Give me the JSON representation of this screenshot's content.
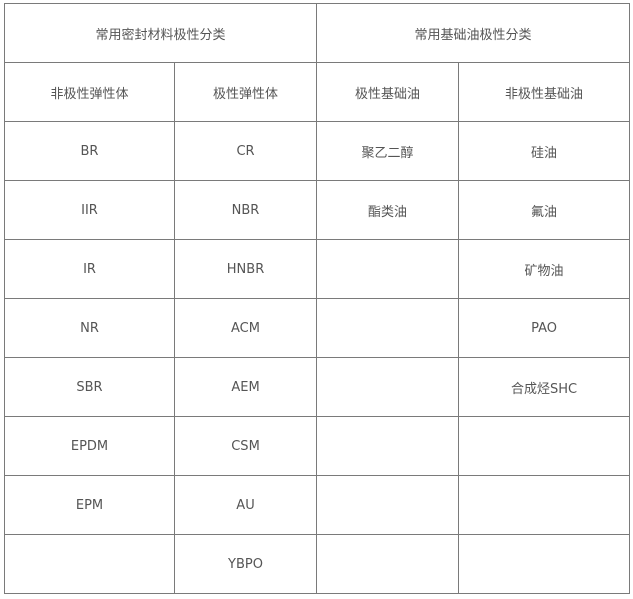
{
  "header": {
    "sealing_materials": "常用密封材料极性分类",
    "base_oils": "常用基础油极性分类"
  },
  "subheader": [
    "非极性弹性体",
    "极性弹性体",
    "极性基础油",
    "非极性基础油"
  ],
  "rows": [
    [
      "BR",
      "CR",
      "聚乙二醇",
      "硅油"
    ],
    [
      "IIR",
      "NBR",
      "酯类油",
      "氟油"
    ],
    [
      "IR",
      "HNBR",
      "",
      "矿物油"
    ],
    [
      "NR",
      "ACM",
      "",
      "PAO"
    ],
    [
      "SBR",
      "AEM",
      "",
      "合成烃SHC"
    ],
    [
      "EPDM",
      "CSM",
      "",
      ""
    ],
    [
      "EPM",
      "AU",
      "",
      ""
    ],
    [
      "",
      "YBPO",
      "",
      ""
    ]
  ]
}
